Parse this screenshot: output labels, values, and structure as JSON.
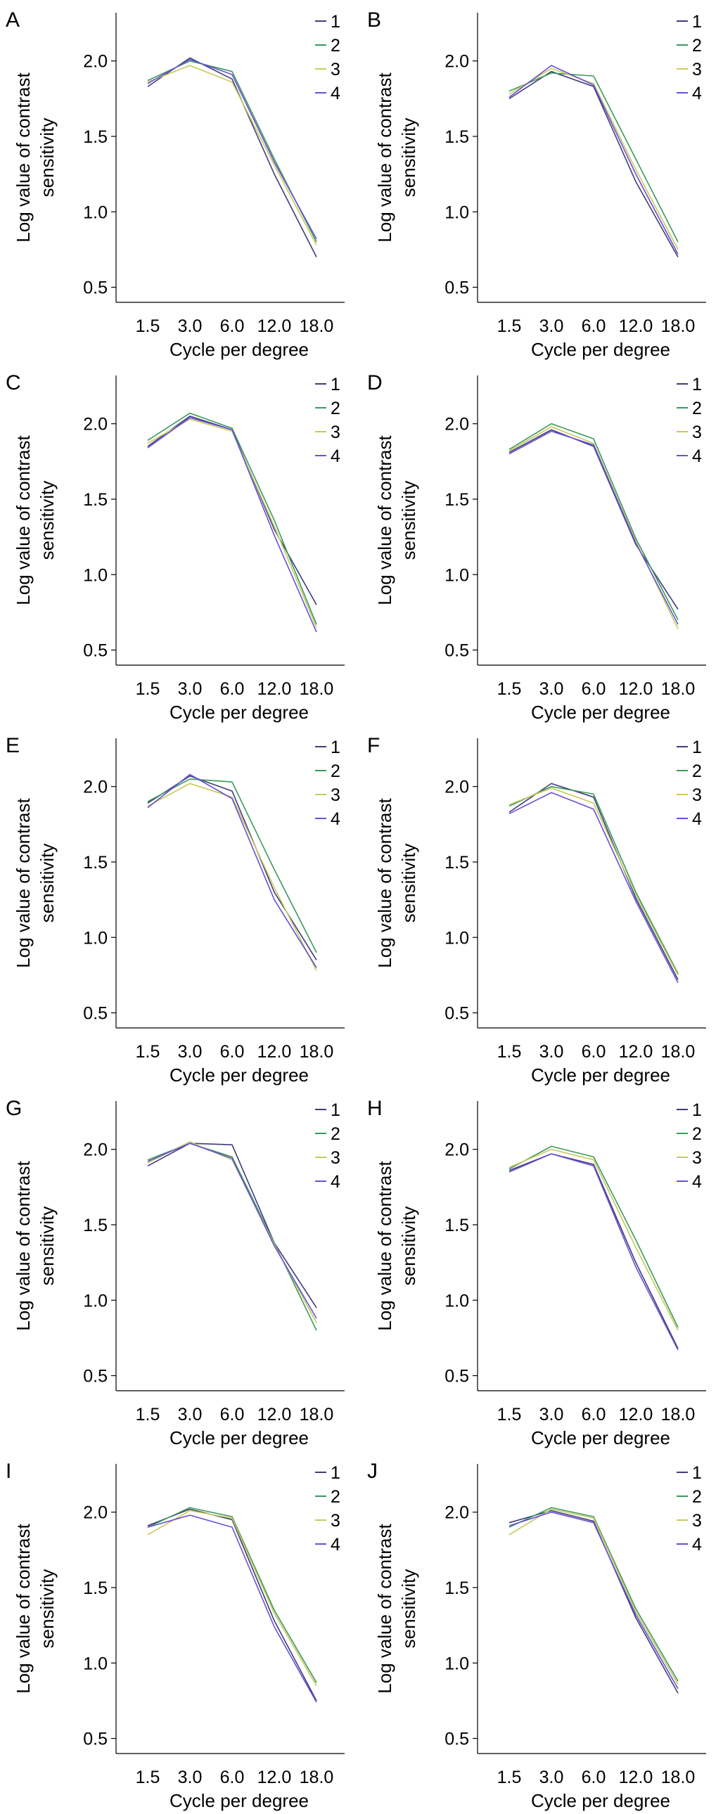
{
  "colors": {
    "1": "#3d3d7a",
    "2": "#3a9a5c",
    "3": "#c9c95a",
    "4": "#6a4fd6",
    "axis": "#000000"
  },
  "chart_data": [
    {
      "type": "line",
      "panel_label": "A",
      "xlabel": "Cycle per degree",
      "ylabel": "Log value of contrast sensitivity",
      "categories": [
        "1.5",
        "3.0",
        "6.0",
        "12.0",
        "18.0"
      ],
      "yticks": [
        "0.5",
        "1.0",
        "1.5",
        "2.0"
      ],
      "ylim": [
        0.4,
        2.32
      ],
      "grid": false,
      "legend_position": "top-right",
      "series": [
        {
          "name": "1",
          "values": [
            1.83,
            2.02,
            1.88,
            1.25,
            0.7
          ]
        },
        {
          "name": "2",
          "values": [
            1.87,
            2.0,
            1.93,
            1.35,
            0.8
          ]
        },
        {
          "name": "3",
          "values": [
            1.86,
            1.97,
            1.86,
            1.31,
            0.78
          ]
        },
        {
          "name": "4",
          "values": [
            1.85,
            2.01,
            1.91,
            1.33,
            0.82
          ]
        }
      ]
    },
    {
      "type": "line",
      "panel_label": "B",
      "xlabel": "Cycle per degree",
      "ylabel": "Log value of contrast sensitivity",
      "categories": [
        "1.5",
        "3.0",
        "6.0",
        "12.0",
        "18.0"
      ],
      "yticks": [
        "0.5",
        "1.0",
        "1.5",
        "2.0"
      ],
      "ylim": [
        0.4,
        2.32
      ],
      "grid": false,
      "legend_position": "top-right",
      "series": [
        {
          "name": "1",
          "values": [
            1.75,
            1.93,
            1.83,
            1.2,
            0.7
          ]
        },
        {
          "name": "2",
          "values": [
            1.8,
            1.92,
            1.9,
            1.35,
            0.8
          ]
        },
        {
          "name": "3",
          "values": [
            1.78,
            1.95,
            1.85,
            1.28,
            0.75
          ]
        },
        {
          "name": "4",
          "values": [
            1.76,
            1.97,
            1.84,
            1.25,
            0.72
          ]
        }
      ]
    },
    {
      "type": "line",
      "panel_label": "C",
      "xlabel": "Cycle per degree",
      "ylabel": "Log value of contrast sensitivity",
      "categories": [
        "1.5",
        "3.0",
        "6.0",
        "12.0",
        "18.0"
      ],
      "yticks": [
        "0.5",
        "1.0",
        "1.5",
        "2.0"
      ],
      "ylim": [
        0.4,
        2.32
      ],
      "grid": false,
      "legend_position": "top-right",
      "series": [
        {
          "name": "1",
          "values": [
            1.85,
            2.05,
            1.96,
            1.3,
            0.8
          ]
        },
        {
          "name": "2",
          "values": [
            1.89,
            2.07,
            1.97,
            1.36,
            0.67
          ]
        },
        {
          "name": "3",
          "values": [
            1.87,
            2.03,
            1.95,
            1.32,
            0.65
          ]
        },
        {
          "name": "4",
          "values": [
            1.84,
            2.04,
            1.96,
            1.26,
            0.62
          ]
        }
      ]
    },
    {
      "type": "line",
      "panel_label": "D",
      "xlabel": "Cycle per degree",
      "ylabel": "Log value of contrast sensitivity",
      "categories": [
        "1.5",
        "3.0",
        "6.0",
        "12.0",
        "18.0"
      ],
      "yticks": [
        "0.5",
        "1.0",
        "1.5",
        "2.0"
      ],
      "ylim": [
        0.4,
        2.32
      ],
      "grid": false,
      "legend_position": "top-right",
      "series": [
        {
          "name": "1",
          "values": [
            1.81,
            1.96,
            1.85,
            1.2,
            0.77
          ]
        },
        {
          "name": "2",
          "values": [
            1.83,
            2.0,
            1.9,
            1.24,
            0.7
          ]
        },
        {
          "name": "3",
          "values": [
            1.82,
            1.98,
            1.87,
            1.22,
            0.64
          ]
        },
        {
          "name": "4",
          "values": [
            1.8,
            1.95,
            1.86,
            1.21,
            0.67
          ]
        }
      ]
    },
    {
      "type": "line",
      "panel_label": "E",
      "xlabel": "Cycle per degree",
      "ylabel": "Log value of contrast sensitivity",
      "categories": [
        "1.5",
        "3.0",
        "6.0",
        "12.0",
        "18.0"
      ],
      "yticks": [
        "0.5",
        "1.0",
        "1.5",
        "2.0"
      ],
      "ylim": [
        0.4,
        2.32
      ],
      "grid": false,
      "legend_position": "top-right",
      "series": [
        {
          "name": "1",
          "values": [
            1.89,
            2.07,
            1.97,
            1.3,
            0.85
          ]
        },
        {
          "name": "2",
          "values": [
            1.9,
            2.05,
            2.03,
            1.45,
            0.9
          ]
        },
        {
          "name": "3",
          "values": [
            1.87,
            2.02,
            1.93,
            1.33,
            0.78
          ]
        },
        {
          "name": "4",
          "values": [
            1.86,
            2.08,
            1.92,
            1.25,
            0.8
          ]
        }
      ]
    },
    {
      "type": "line",
      "panel_label": "F",
      "xlabel": "Cycle per degree",
      "ylabel": "Log value of contrast sensitivity",
      "categories": [
        "1.5",
        "3.0",
        "6.0",
        "12.0",
        "18.0"
      ],
      "yticks": [
        "0.5",
        "1.0",
        "1.5",
        "2.0"
      ],
      "ylim": [
        0.4,
        2.32
      ],
      "grid": false,
      "legend_position": "top-right",
      "series": [
        {
          "name": "1",
          "values": [
            1.83,
            2.02,
            1.93,
            1.26,
            0.72
          ]
        },
        {
          "name": "2",
          "values": [
            1.87,
            2.0,
            1.95,
            1.3,
            0.76
          ]
        },
        {
          "name": "3",
          "values": [
            1.88,
            1.99,
            1.89,
            1.28,
            0.75
          ]
        },
        {
          "name": "4",
          "values": [
            1.82,
            1.96,
            1.85,
            1.24,
            0.7
          ]
        }
      ]
    },
    {
      "type": "line",
      "panel_label": "G",
      "xlabel": "Cycle per degree",
      "ylabel": "Log value of contrast sensitivity",
      "categories": [
        "1.5",
        "3.0",
        "6.0",
        "12.0",
        "18.0"
      ],
      "yticks": [
        "0.5",
        "1.0",
        "1.5",
        "2.0"
      ],
      "ylim": [
        0.4,
        2.32
      ],
      "grid": false,
      "legend_position": "top-right",
      "series": [
        {
          "name": "1",
          "values": [
            1.89,
            2.04,
            2.03,
            1.38,
            0.95
          ]
        },
        {
          "name": "2",
          "values": [
            1.93,
            2.04,
            1.95,
            1.38,
            0.8
          ]
        },
        {
          "name": "3",
          "values": [
            1.91,
            2.05,
            1.93,
            1.37,
            0.85
          ]
        },
        {
          "name": "4",
          "values": [
            1.92,
            2.04,
            1.94,
            1.36,
            0.88
          ]
        }
      ]
    },
    {
      "type": "line",
      "panel_label": "H",
      "xlabel": "Cycle per degree",
      "ylabel": "Log value of contrast sensitivity",
      "categories": [
        "1.5",
        "3.0",
        "6.0",
        "12.0",
        "18.0"
      ],
      "yticks": [
        "0.5",
        "1.0",
        "1.5",
        "2.0"
      ],
      "ylim": [
        0.4,
        2.32
      ],
      "grid": false,
      "legend_position": "top-right",
      "series": [
        {
          "name": "1",
          "values": [
            1.86,
            1.97,
            1.9,
            1.25,
            0.68
          ]
        },
        {
          "name": "2",
          "values": [
            1.87,
            2.02,
            1.95,
            1.4,
            0.82
          ]
        },
        {
          "name": "3",
          "values": [
            1.88,
            2.0,
            1.93,
            1.35,
            0.8
          ]
        },
        {
          "name": "4",
          "values": [
            1.85,
            1.97,
            1.89,
            1.22,
            0.67
          ]
        }
      ]
    },
    {
      "type": "line",
      "panel_label": "I",
      "xlabel": "Cycle per degree",
      "ylabel": "Log value of contrast sensitivity",
      "categories": [
        "1.5",
        "3.0",
        "6.0",
        "12.0",
        "18.0"
      ],
      "yticks": [
        "0.5",
        "1.0",
        "1.5",
        "2.0"
      ],
      "ylim": [
        0.4,
        2.32
      ],
      "grid": false,
      "legend_position": "top-right",
      "series": [
        {
          "name": "1",
          "values": [
            1.91,
            2.02,
            1.95,
            1.28,
            0.75
          ]
        },
        {
          "name": "2",
          "values": [
            1.9,
            2.03,
            1.97,
            1.35,
            0.87
          ]
        },
        {
          "name": "3",
          "values": [
            1.85,
            2.01,
            1.96,
            1.33,
            0.85
          ]
        },
        {
          "name": "4",
          "values": [
            1.9,
            1.98,
            1.9,
            1.24,
            0.74
          ]
        }
      ]
    },
    {
      "type": "line",
      "panel_label": "J",
      "xlabel": "Cycle per degree",
      "ylabel": "Log value of contrast sensitivity",
      "categories": [
        "1.5",
        "3.0",
        "6.0",
        "12.0",
        "18.0"
      ],
      "yticks": [
        "0.5",
        "1.0",
        "1.5",
        "2.0"
      ],
      "ylim": [
        0.4,
        2.32
      ],
      "grid": false,
      "legend_position": "top-right",
      "series": [
        {
          "name": "1",
          "values": [
            1.93,
            2.01,
            1.94,
            1.3,
            0.8
          ]
        },
        {
          "name": "2",
          "values": [
            1.9,
            2.03,
            1.97,
            1.36,
            0.88
          ]
        },
        {
          "name": "3",
          "values": [
            1.85,
            2.02,
            1.96,
            1.34,
            0.86
          ]
        },
        {
          "name": "4",
          "values": [
            1.91,
            2.0,
            1.93,
            1.32,
            0.83
          ]
        }
      ]
    }
  ]
}
